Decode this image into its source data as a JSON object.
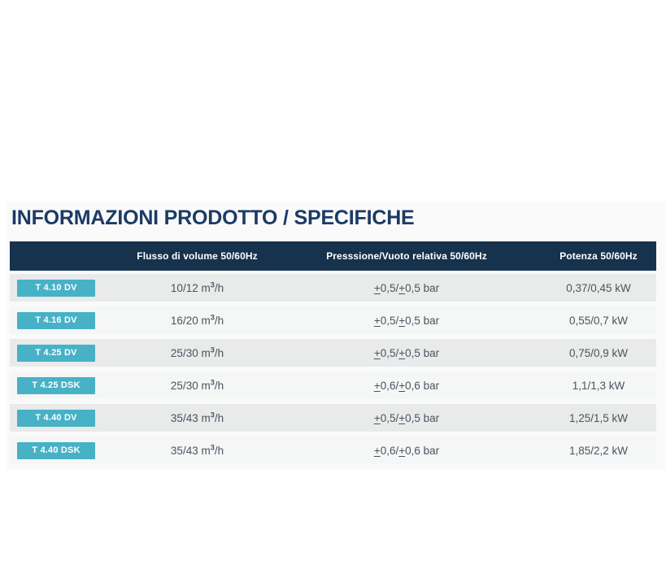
{
  "section": {
    "title": "INFORMAZIONI PRODOTTO / SPECIFICHE"
  },
  "table": {
    "headers": {
      "model": "",
      "flow": "Flusso di volume 50/60Hz",
      "pressure": "Presssione/Vuoto relativa 50/60Hz",
      "power": "Potenza 50/60Hz"
    },
    "rows": [
      {
        "model": "T 4.10 DV",
        "flow": "10/12 m³/h",
        "pressure": "±0,5/±0,5 bar",
        "power": "0,37/0,45 kW"
      },
      {
        "model": "T 4.16 DV",
        "flow": "16/20 m³/h",
        "pressure": "±0,5/±0,5 bar",
        "power": "0,55/0,7 kW"
      },
      {
        "model": "T 4.25 DV",
        "flow": "25/30 m³/h",
        "pressure": "±0,5/±0,5 bar",
        "power": "0,75/0,9 kW"
      },
      {
        "model": "T 4.25 DSK",
        "flow": "25/30 m³/h",
        "pressure": "±0,6/±0,6 bar",
        "power": "1,1/1,3 kW"
      },
      {
        "model": "T 4.40 DV",
        "flow": "35/43 m³/h",
        "pressure": "±0,5/±0,5 bar",
        "power": "1,25/1,5 kW"
      },
      {
        "model": "T 4.40 DSK",
        "flow": "35/43 m³/h",
        "pressure": "±0,6/±0,6 bar",
        "power": "1,85/2,2 kW"
      }
    ]
  },
  "colors": {
    "title_navy": "#1b3a67",
    "header_navy": "#16324d",
    "badge_teal": "#47b1c6",
    "row_shade_dark": "#e9eaea",
    "row_shade_light": "#f5f6f6"
  }
}
